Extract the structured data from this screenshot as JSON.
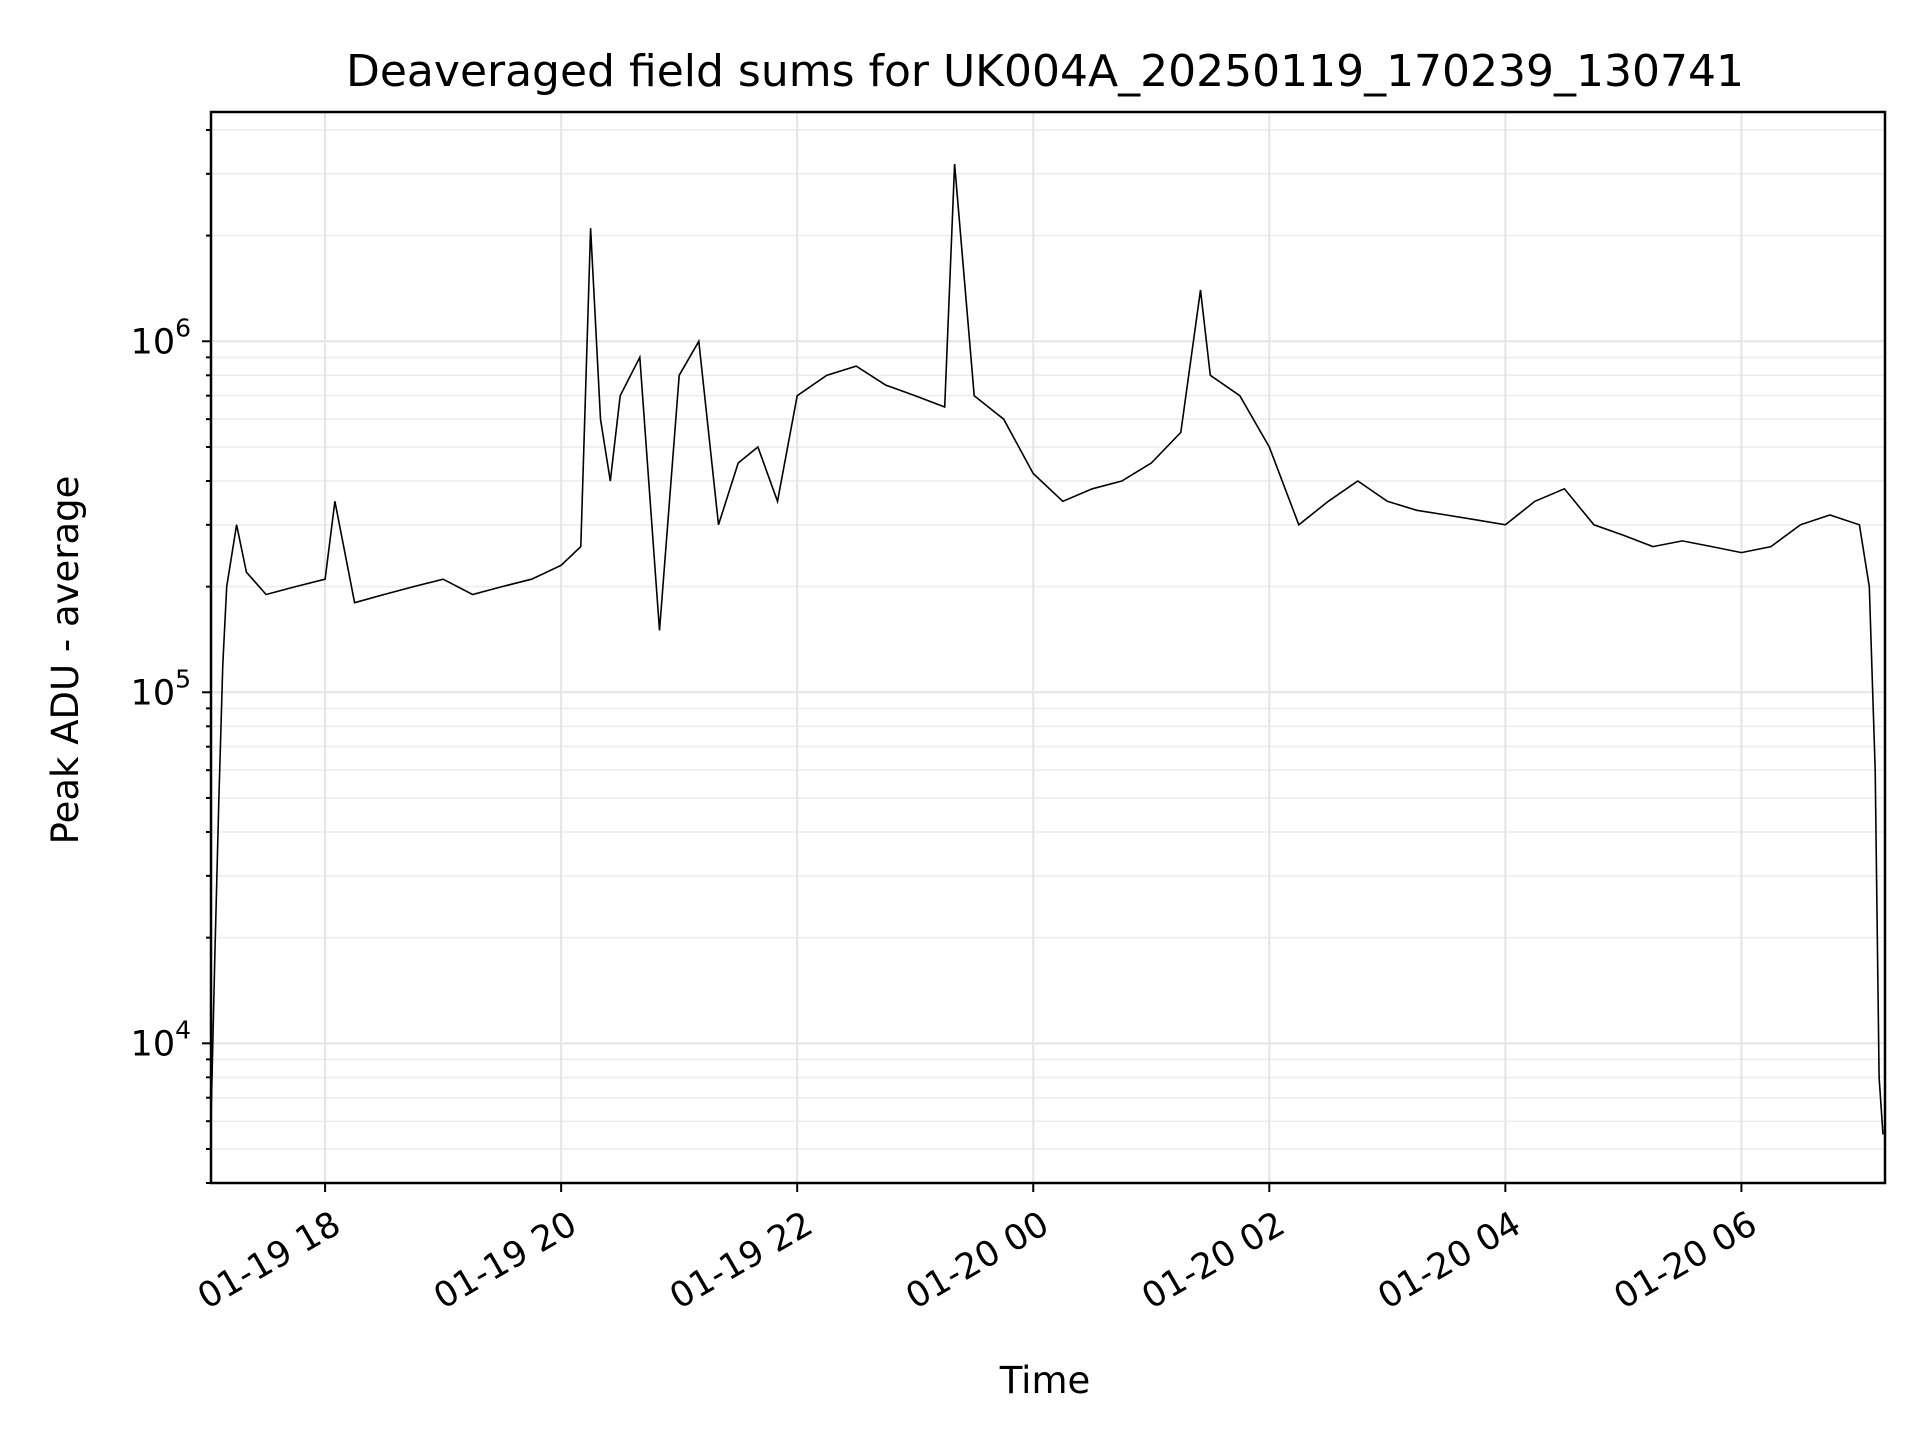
{
  "chart_data": {
    "type": "line",
    "title": "Deaveraged field sums for UK004A_20250119_170239_130741",
    "xlabel": "Time",
    "ylabel": "Peak ADU - average",
    "y_scale": "log",
    "ylim": [
      4000,
      4500000
    ],
    "xlim": [
      "2025-01-19 17:02",
      "2025-01-20 07:13"
    ],
    "grid": true,
    "line_color": "#000000",
    "x_ticks": [
      {
        "value": "2025-01-19 18:00",
        "label": "01-19 18"
      },
      {
        "value": "2025-01-19 20:00",
        "label": "01-19 20"
      },
      {
        "value": "2025-01-19 22:00",
        "label": "01-19 22"
      },
      {
        "value": "2025-01-20 00:00",
        "label": "01-20 00"
      },
      {
        "value": "2025-01-20 02:00",
        "label": "01-20 02"
      },
      {
        "value": "2025-01-20 04:00",
        "label": "01-20 04"
      },
      {
        "value": "2025-01-20 06:00",
        "label": "01-20 06"
      }
    ],
    "y_ticks": [
      {
        "value": 10000,
        "base": "10",
        "exp": "4"
      },
      {
        "value": 100000,
        "base": "10",
        "exp": "5"
      },
      {
        "value": 1000000,
        "base": "10",
        "exp": "6"
      }
    ],
    "series": [
      {
        "x": [
          "2025-01-19 17:02",
          "2025-01-19 17:04",
          "2025-01-19 17:06",
          "2025-01-19 17:08",
          "2025-01-19 17:10",
          "2025-01-19 17:15",
          "2025-01-19 17:20",
          "2025-01-19 17:30",
          "2025-01-19 17:45",
          "2025-01-19 18:00",
          "2025-01-19 18:05",
          "2025-01-19 18:15",
          "2025-01-19 18:30",
          "2025-01-19 18:45",
          "2025-01-19 19:00",
          "2025-01-19 19:15",
          "2025-01-19 19:30",
          "2025-01-19 19:45",
          "2025-01-19 20:00",
          "2025-01-19 20:10",
          "2025-01-19 20:15",
          "2025-01-19 20:20",
          "2025-01-19 20:25",
          "2025-01-19 20:30",
          "2025-01-19 20:40",
          "2025-01-19 20:50",
          "2025-01-19 21:00",
          "2025-01-19 21:10",
          "2025-01-19 21:20",
          "2025-01-19 21:30",
          "2025-01-19 21:40",
          "2025-01-19 21:50",
          "2025-01-19 22:00",
          "2025-01-19 22:15",
          "2025-01-19 22:30",
          "2025-01-19 22:45",
          "2025-01-19 23:00",
          "2025-01-19 23:15",
          "2025-01-19 23:20",
          "2025-01-19 23:30",
          "2025-01-19 23:45",
          "2025-01-20 00:00",
          "2025-01-20 00:15",
          "2025-01-20 00:30",
          "2025-01-20 00:45",
          "2025-01-20 01:00",
          "2025-01-20 01:15",
          "2025-01-20 01:25",
          "2025-01-20 01:30",
          "2025-01-20 01:45",
          "2025-01-20 02:00",
          "2025-01-20 02:15",
          "2025-01-20 02:30",
          "2025-01-20 02:45",
          "2025-01-20 03:00",
          "2025-01-20 03:15",
          "2025-01-20 03:30",
          "2025-01-20 03:45",
          "2025-01-20 04:00",
          "2025-01-20 04:15",
          "2025-01-20 04:30",
          "2025-01-20 04:45",
          "2025-01-20 05:00",
          "2025-01-20 05:15",
          "2025-01-20 05:30",
          "2025-01-20 05:45",
          "2025-01-20 06:00",
          "2025-01-20 06:15",
          "2025-01-20 06:30",
          "2025-01-20 06:45",
          "2025-01-20 07:00",
          "2025-01-20 07:05",
          "2025-01-20 07:08",
          "2025-01-20 07:10",
          "2025-01-20 07:12"
        ],
        "y": [
          6000,
          18000,
          50000,
          120000,
          200000,
          300000,
          220000,
          190000,
          200000,
          210000,
          350000,
          180000,
          190000,
          200000,
          210000,
          190000,
          200000,
          210000,
          230000,
          260000,
          2100000,
          600000,
          400000,
          700000,
          900000,
          150000,
          800000,
          1000000,
          300000,
          450000,
          500000,
          350000,
          700000,
          800000,
          850000,
          750000,
          700000,
          650000,
          3200000,
          700000,
          600000,
          420000,
          350000,
          380000,
          400000,
          450000,
          550000,
          1400000,
          800000,
          700000,
          500000,
          300000,
          350000,
          400000,
          350000,
          330000,
          320000,
          310000,
          300000,
          350000,
          380000,
          300000,
          280000,
          260000,
          270000,
          260000,
          250000,
          260000,
          300000,
          320000,
          300000,
          200000,
          60000,
          8000,
          5500
        ]
      }
    ]
  }
}
